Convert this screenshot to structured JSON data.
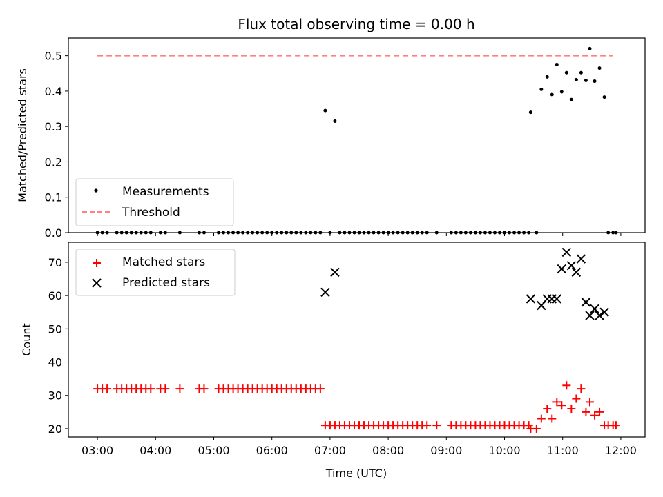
{
  "chart_data": [
    {
      "type": "scatter",
      "title": "Flux total observing time = 0.00 h",
      "ylabel": "Matched/Predicted stars",
      "xlabel": "",
      "xlim": [
        "02:30",
        "12:25"
      ],
      "ylim": [
        0,
        0.55
      ],
      "yticks": [
        0,
        0.1,
        0.2,
        0.3,
        0.4,
        0.5
      ],
      "ytick_labels": [
        "0.0",
        "0.1",
        "0.2",
        "0.3",
        "0.4",
        "0.5"
      ],
      "x_is_time": true,
      "legend": "lower-left",
      "threshold": {
        "name": "Threshold",
        "value": 0.5,
        "x_range": [
          "03:00",
          "11:52"
        ],
        "color": "#ff8080",
        "style": "dashed"
      },
      "series": [
        {
          "name": "Measurements",
          "color": "#000000",
          "marker": "dot",
          "points": [
            [
              "03:00",
              0
            ],
            [
              "03:05",
              0
            ],
            [
              "03:10",
              0
            ],
            [
              "03:20",
              0
            ],
            [
              "03:25",
              0
            ],
            [
              "03:30",
              0
            ],
            [
              "03:35",
              0
            ],
            [
              "03:40",
              0
            ],
            [
              "03:45",
              0
            ],
            [
              "03:50",
              0
            ],
            [
              "03:55",
              0
            ],
            [
              "04:05",
              0
            ],
            [
              "04:10",
              0
            ],
            [
              "04:25",
              0
            ],
            [
              "04:45",
              0
            ],
            [
              "04:50",
              0
            ],
            [
              "05:05",
              0
            ],
            [
              "05:10",
              0
            ],
            [
              "05:15",
              0
            ],
            [
              "05:20",
              0
            ],
            [
              "05:25",
              0
            ],
            [
              "05:30",
              0
            ],
            [
              "05:35",
              0
            ],
            [
              "05:40",
              0
            ],
            [
              "05:45",
              0
            ],
            [
              "05:50",
              0
            ],
            [
              "05:55",
              0
            ],
            [
              "06:00",
              0
            ],
            [
              "06:05",
              0
            ],
            [
              "06:10",
              0
            ],
            [
              "06:15",
              0
            ],
            [
              "06:20",
              0
            ],
            [
              "06:25",
              0
            ],
            [
              "06:30",
              0
            ],
            [
              "06:35",
              0
            ],
            [
              "06:40",
              0
            ],
            [
              "06:45",
              0
            ],
            [
              "06:50",
              0
            ],
            [
              "06:55",
              0.345
            ],
            [
              "07:00",
              0
            ],
            [
              "07:05",
              0.315
            ],
            [
              "07:10",
              0
            ],
            [
              "07:15",
              0
            ],
            [
              "07:20",
              0
            ],
            [
              "07:25",
              0
            ],
            [
              "07:30",
              0
            ],
            [
              "07:35",
              0
            ],
            [
              "07:40",
              0
            ],
            [
              "07:45",
              0
            ],
            [
              "07:50",
              0
            ],
            [
              "07:55",
              0
            ],
            [
              "08:00",
              0
            ],
            [
              "08:05",
              0
            ],
            [
              "08:10",
              0
            ],
            [
              "08:15",
              0
            ],
            [
              "08:20",
              0
            ],
            [
              "08:25",
              0
            ],
            [
              "08:30",
              0
            ],
            [
              "08:35",
              0
            ],
            [
              "08:40",
              0
            ],
            [
              "08:50",
              0
            ],
            [
              "09:05",
              0
            ],
            [
              "09:10",
              0
            ],
            [
              "09:15",
              0
            ],
            [
              "09:20",
              0
            ],
            [
              "09:25",
              0
            ],
            [
              "09:30",
              0
            ],
            [
              "09:35",
              0
            ],
            [
              "09:40",
              0
            ],
            [
              "09:45",
              0
            ],
            [
              "09:50",
              0
            ],
            [
              "09:55",
              0
            ],
            [
              "10:00",
              0
            ],
            [
              "10:05",
              0
            ],
            [
              "10:10",
              0
            ],
            [
              "10:15",
              0
            ],
            [
              "10:20",
              0
            ],
            [
              "10:25",
              0
            ],
            [
              "10:27",
              0.34
            ],
            [
              "10:33",
              0
            ],
            [
              "10:38",
              0.405
            ],
            [
              "10:44",
              0.44
            ],
            [
              "10:49",
              0.39
            ],
            [
              "10:54",
              0.475
            ],
            [
              "10:59",
              0.398
            ],
            [
              "11:04",
              0.452
            ],
            [
              "11:09",
              0.376
            ],
            [
              "11:14",
              0.432
            ],
            [
              "11:19",
              0.452
            ],
            [
              "11:24",
              0.43
            ],
            [
              "11:28",
              0.52
            ],
            [
              "11:33",
              0.428
            ],
            [
              "11:38",
              0.465
            ],
            [
              "11:43",
              0.383
            ],
            [
              "11:47",
              0
            ],
            [
              "11:52",
              0
            ],
            [
              "11:55",
              0
            ]
          ]
        }
      ]
    },
    {
      "type": "scatter",
      "title": "",
      "ylabel": "Count",
      "xlabel": "Time (UTC)",
      "xlim": [
        "02:30",
        "12:25"
      ],
      "ylim": [
        17.5,
        76
      ],
      "yticks": [
        20,
        30,
        40,
        50,
        60,
        70
      ],
      "ytick_labels": [
        "20",
        "30",
        "40",
        "50",
        "60",
        "70"
      ],
      "xticks": [
        "03:00",
        "04:00",
        "05:00",
        "06:00",
        "07:00",
        "08:00",
        "09:00",
        "10:00",
        "11:00",
        "12:00"
      ],
      "x_is_time": true,
      "legend": "top-left",
      "series": [
        {
          "name": "Matched stars",
          "color": "#ff0000",
          "marker": "plus",
          "points": [
            [
              "03:00",
              32
            ],
            [
              "03:05",
              32
            ],
            [
              "03:10",
              32
            ],
            [
              "03:20",
              32
            ],
            [
              "03:25",
              32
            ],
            [
              "03:30",
              32
            ],
            [
              "03:35",
              32
            ],
            [
              "03:40",
              32
            ],
            [
              "03:45",
              32
            ],
            [
              "03:50",
              32
            ],
            [
              "03:55",
              32
            ],
            [
              "04:05",
              32
            ],
            [
              "04:10",
              32
            ],
            [
              "04:25",
              32
            ],
            [
              "04:45",
              32
            ],
            [
              "04:50",
              32
            ],
            [
              "05:05",
              32
            ],
            [
              "05:10",
              32
            ],
            [
              "05:15",
              32
            ],
            [
              "05:20",
              32
            ],
            [
              "05:25",
              32
            ],
            [
              "05:30",
              32
            ],
            [
              "05:35",
              32
            ],
            [
              "05:40",
              32
            ],
            [
              "05:45",
              32
            ],
            [
              "05:50",
              32
            ],
            [
              "05:55",
              32
            ],
            [
              "06:00",
              32
            ],
            [
              "06:05",
              32
            ],
            [
              "06:10",
              32
            ],
            [
              "06:15",
              32
            ],
            [
              "06:20",
              32
            ],
            [
              "06:25",
              32
            ],
            [
              "06:30",
              32
            ],
            [
              "06:35",
              32
            ],
            [
              "06:40",
              32
            ],
            [
              "06:45",
              32
            ],
            [
              "06:50",
              32
            ],
            [
              "06:55",
              21
            ],
            [
              "07:00",
              21
            ],
            [
              "07:05",
              21
            ],
            [
              "07:10",
              21
            ],
            [
              "07:15",
              21
            ],
            [
              "07:20",
              21
            ],
            [
              "07:25",
              21
            ],
            [
              "07:30",
              21
            ],
            [
              "07:35",
              21
            ],
            [
              "07:40",
              21
            ],
            [
              "07:45",
              21
            ],
            [
              "07:50",
              21
            ],
            [
              "07:55",
              21
            ],
            [
              "08:00",
              21
            ],
            [
              "08:05",
              21
            ],
            [
              "08:10",
              21
            ],
            [
              "08:15",
              21
            ],
            [
              "08:20",
              21
            ],
            [
              "08:25",
              21
            ],
            [
              "08:30",
              21
            ],
            [
              "08:35",
              21
            ],
            [
              "08:40",
              21
            ],
            [
              "08:50",
              21
            ],
            [
              "09:05",
              21
            ],
            [
              "09:10",
              21
            ],
            [
              "09:15",
              21
            ],
            [
              "09:20",
              21
            ],
            [
              "09:25",
              21
            ],
            [
              "09:30",
              21
            ],
            [
              "09:35",
              21
            ],
            [
              "09:40",
              21
            ],
            [
              "09:45",
              21
            ],
            [
              "09:50",
              21
            ],
            [
              "09:55",
              21
            ],
            [
              "10:00",
              21
            ],
            [
              "10:05",
              21
            ],
            [
              "10:10",
              21
            ],
            [
              "10:15",
              21
            ],
            [
              "10:20",
              21
            ],
            [
              "10:25",
              21
            ],
            [
              "10:27",
              20
            ],
            [
              "10:33",
              20
            ],
            [
              "10:38",
              23
            ],
            [
              "10:44",
              26
            ],
            [
              "10:49",
              23
            ],
            [
              "10:54",
              28
            ],
            [
              "10:59",
              27
            ],
            [
              "11:04",
              33
            ],
            [
              "11:09",
              26
            ],
            [
              "11:14",
              29
            ],
            [
              "11:19",
              32
            ],
            [
              "11:24",
              25
            ],
            [
              "11:28",
              28
            ],
            [
              "11:33",
              24
            ],
            [
              "11:38",
              25
            ],
            [
              "11:43",
              21
            ],
            [
              "11:47",
              21
            ],
            [
              "11:52",
              21
            ],
            [
              "11:55",
              21
            ]
          ]
        },
        {
          "name": "Predicted stars",
          "color": "#000000",
          "marker": "x",
          "points": [
            [
              "06:55",
              61
            ],
            [
              "07:05",
              67
            ],
            [
              "10:27",
              59
            ],
            [
              "10:38",
              57
            ],
            [
              "10:44",
              59
            ],
            [
              "10:49",
              59
            ],
            [
              "10:54",
              59
            ],
            [
              "10:59",
              68
            ],
            [
              "11:04",
              73
            ],
            [
              "11:09",
              69
            ],
            [
              "11:14",
              67
            ],
            [
              "11:19",
              71
            ],
            [
              "11:24",
              58
            ],
            [
              "11:28",
              54
            ],
            [
              "11:33",
              56
            ],
            [
              "11:38",
              54
            ],
            [
              "11:43",
              55
            ]
          ]
        }
      ]
    }
  ]
}
